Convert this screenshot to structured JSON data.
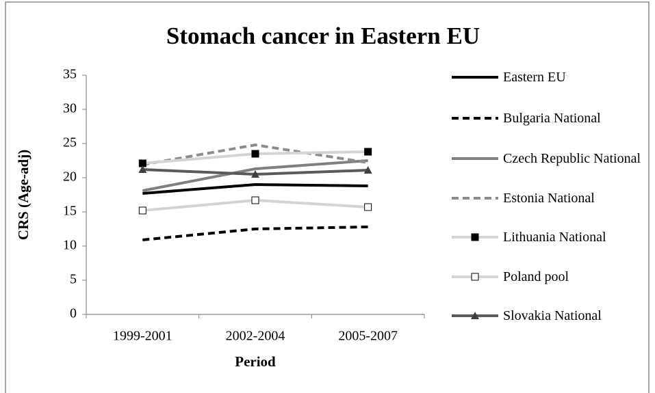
{
  "chart_data": {
    "type": "line",
    "title": "Stomach cancer in Eastern EU",
    "x_label": "Period",
    "y_label": "CRS (Age-adj)",
    "categories": [
      "1999-2001",
      "2002-2004",
      "2005-2007"
    ],
    "ylim": [
      0,
      35
    ],
    "yticks": [
      0,
      5,
      10,
      15,
      20,
      25,
      30,
      35
    ],
    "grid": false,
    "legend": "right",
    "series": [
      {
        "name": "Eastern  EU",
        "color": "#000000",
        "dash": false,
        "marker": "none",
        "values": [
          17.7,
          19.0,
          18.8
        ]
      },
      {
        "name": "Bulgaria National",
        "color": "#000000",
        "dash": true,
        "marker": "none",
        "values": [
          10.9,
          12.5,
          12.8
        ]
      },
      {
        "name": "Czech Republic National",
        "color": "#808080",
        "dash": false,
        "marker": "none",
        "values": [
          18.1,
          21.3,
          22.5
        ]
      },
      {
        "name": "Estonia National",
        "color": "#8c8c8c",
        "dash": true,
        "marker": "none",
        "values": [
          21.9,
          24.8,
          22.2
        ]
      },
      {
        "name": "Lithuania National",
        "color": "#d4d4d4",
        "dash": false,
        "marker": "square",
        "marker_color": "#000000",
        "values": [
          22.1,
          23.5,
          23.8
        ]
      },
      {
        "name": "Poland pool",
        "color": "#d4d4d4",
        "dash": false,
        "marker": "square",
        "marker_color": "#ffffff",
        "values": [
          15.2,
          16.7,
          15.7
        ]
      },
      {
        "name": "Slovakia National",
        "color": "#595959",
        "dash": false,
        "marker": "triangle",
        "marker_color": "#404040",
        "values": [
          21.2,
          20.5,
          21.1
        ]
      }
    ]
  }
}
